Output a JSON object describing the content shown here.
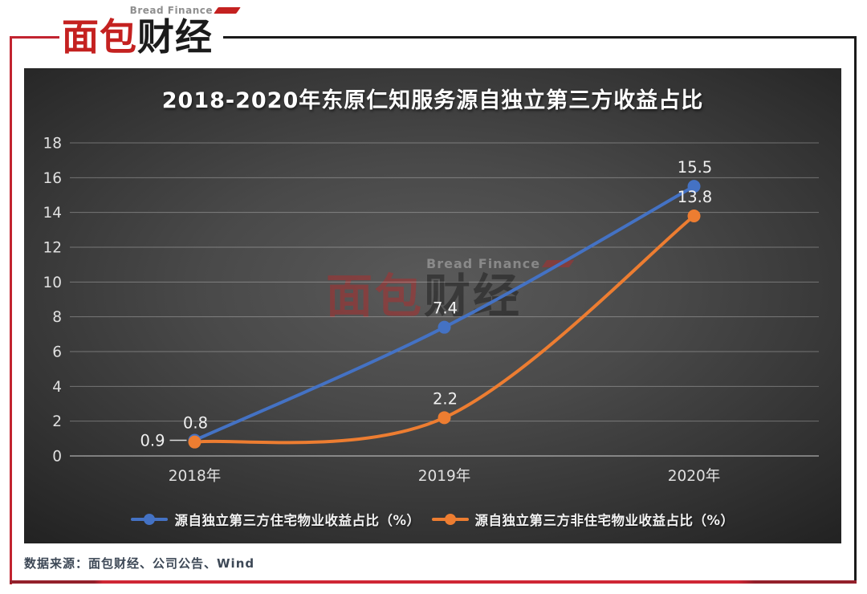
{
  "header": {
    "brand_en": "Bread Finance",
    "brand_cn_red": "面包",
    "brand_cn_black": "财经"
  },
  "watermark": {
    "brand_en": "Bread Finance",
    "brand_cn_red": "面包",
    "brand_cn_black": "财经"
  },
  "footer": {
    "source": "数据来源：面包财经、公司公告、Wind"
  },
  "colors": {
    "accent_red": "#c22430",
    "frame_black": "#1a1a1a",
    "series_blue": "#4472c4",
    "series_orange": "#ed7d31",
    "chart_text": "#e3e3e3"
  },
  "chart_data": {
    "type": "line",
    "title": "2018-2020年东原仁知服务源自独立第三方收益占比",
    "categories": [
      "2018年",
      "2019年",
      "2020年"
    ],
    "series": [
      {
        "name": "源自独立第三方住宅物业收益占比（%）",
        "values": [
          0.9,
          7.4,
          15.5
        ],
        "color": "#4472c4",
        "label_placement": [
          "left",
          "above",
          "above"
        ]
      },
      {
        "name": "源自独立第三方非住宅物业收益占比（%）",
        "values": [
          0.8,
          2.2,
          13.8
        ],
        "color": "#ed7d31",
        "label_placement": [
          "above",
          "above",
          "above"
        ]
      }
    ],
    "xlabel": "",
    "ylabel": "",
    "ylim": [
      0,
      18
    ],
    "ytick_step": 2,
    "grid": true,
    "smooth": true,
    "legend_position": "bottom"
  }
}
